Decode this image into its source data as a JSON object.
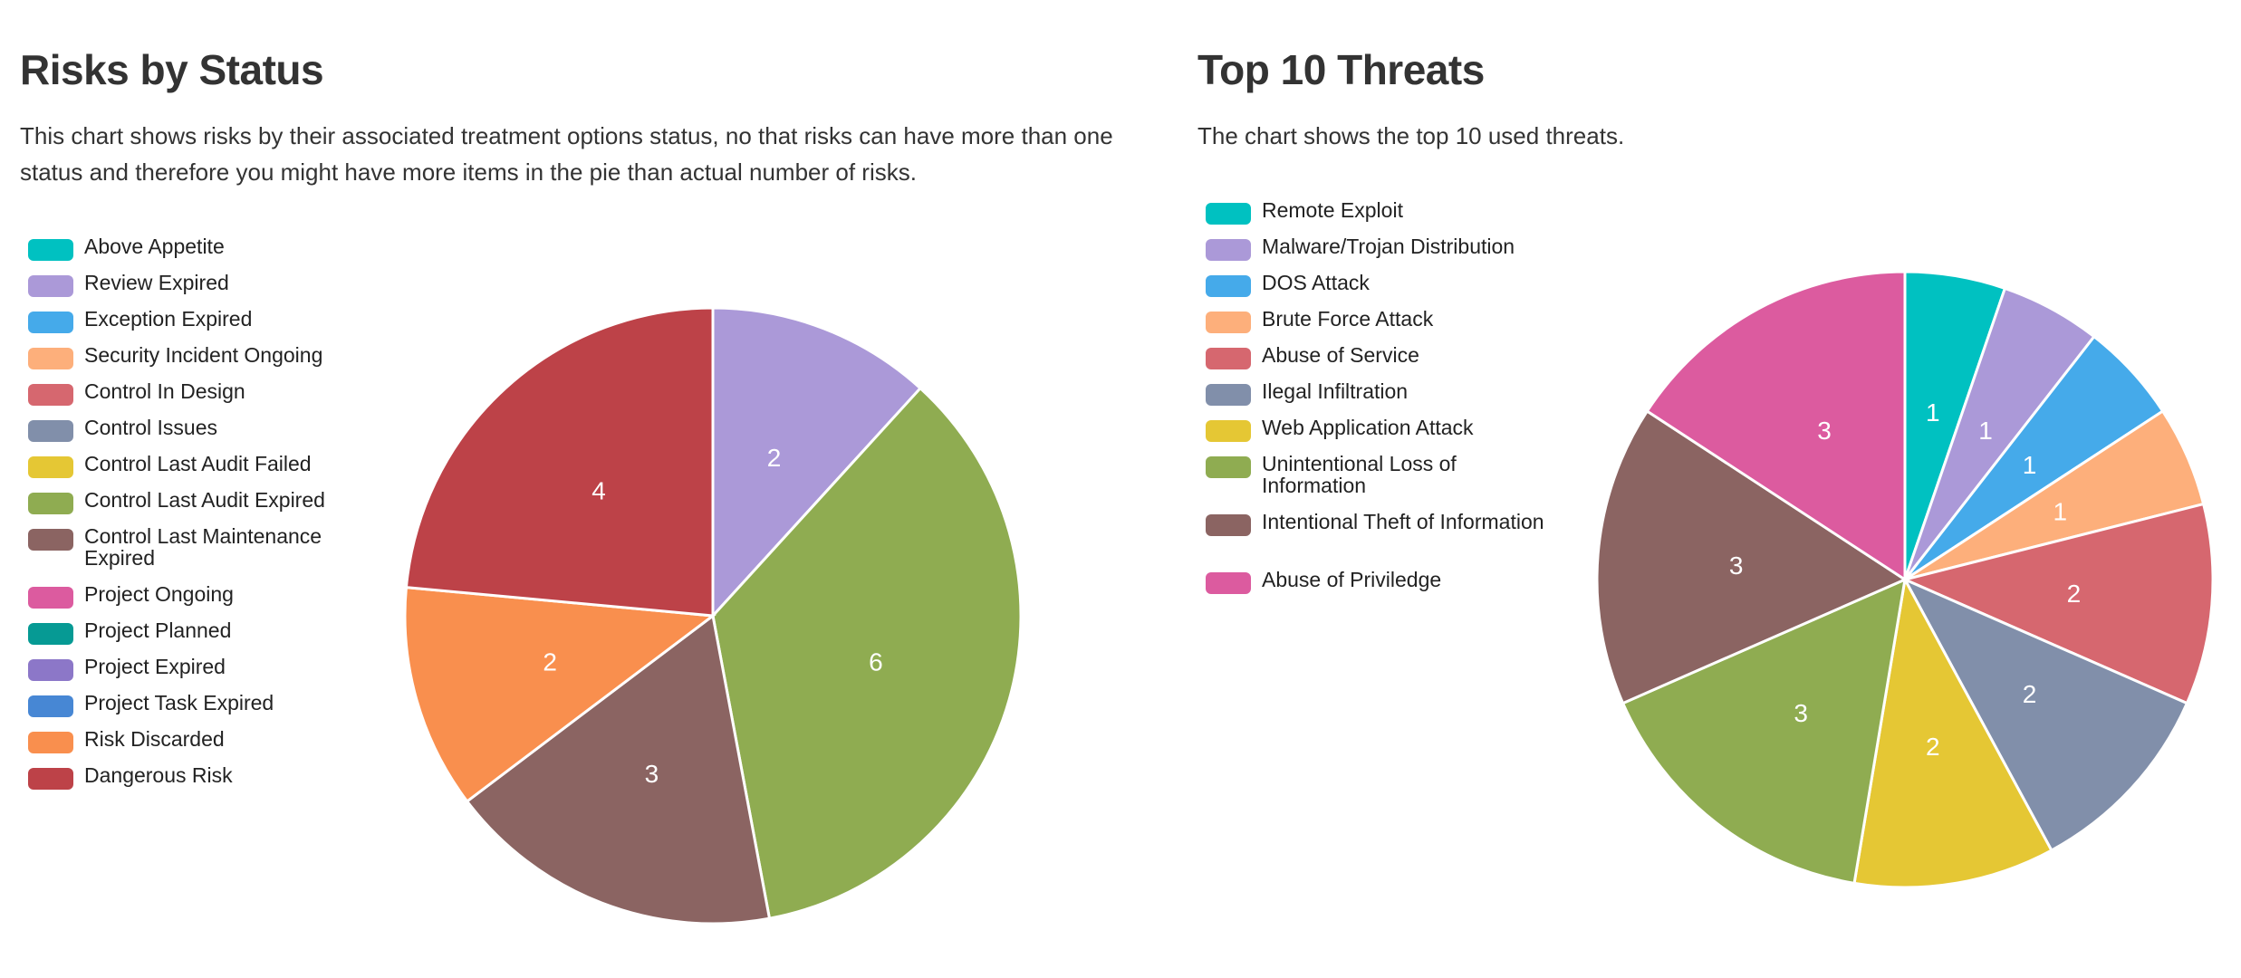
{
  "chart_data": [
    {
      "type": "pie",
      "title": "Risks by Status",
      "description": "This chart shows risks by their associated treatment options status, no that risks can have more than one status and therefore you might have more items in the pie than actual number of risks.",
      "legend": [
        {
          "label": "Above Appetite",
          "color": "#00c1c1"
        },
        {
          "label": "Review Expired",
          "color": "#ab99d8"
        },
        {
          "label": "Exception Expired",
          "color": "#45aaea"
        },
        {
          "label": "Security Incident Ongoing",
          "color": "#fdaf7b"
        },
        {
          "label": "Control In Design",
          "color": "#d6676f"
        },
        {
          "label": "Control Issues",
          "color": "#818faa"
        },
        {
          "label": "Control Last Audit Failed",
          "color": "#e5c734"
        },
        {
          "label": "Control Last Audit Expired",
          "color": "#8fac51"
        },
        {
          "label": "Control Last Maintenance Expired",
          "color": "#8b6462"
        },
        {
          "label": "Project Ongoing",
          "color": "#dc5b9f"
        },
        {
          "label": "Project Planned",
          "color": "#069a94"
        },
        {
          "label": "Project Expired",
          "color": "#8c77c8"
        },
        {
          "label": "Project Task Expired",
          "color": "#4787d4"
        },
        {
          "label": "Risk Discarded",
          "color": "#f98f4e"
        },
        {
          "label": "Dangerous Risk",
          "color": "#bd4248"
        }
      ],
      "slices": [
        {
          "label": "Review Expired",
          "value": 2,
          "color": "#ab99d8"
        },
        {
          "label": "Control Last Audit Expired",
          "value": 6,
          "color": "#8fac51"
        },
        {
          "label": "Control Last Maintenance Expired",
          "value": 3,
          "color": "#8b6462"
        },
        {
          "label": "Risk Discarded",
          "value": 2,
          "color": "#f98f4e"
        },
        {
          "label": "Dangerous Risk",
          "value": 4,
          "color": "#bd4248"
        }
      ]
    },
    {
      "type": "pie",
      "title": "Top 10 Threats",
      "description": "The chart shows the top 10 used threats.",
      "legend": [
        {
          "label": "Remote Exploit",
          "color": "#00c1c1"
        },
        {
          "label": "Malware/Trojan Distribution",
          "color": "#ab99d8"
        },
        {
          "label": "DOS Attack",
          "color": "#45aaea"
        },
        {
          "label": "Brute Force Attack",
          "color": "#fdaf7b"
        },
        {
          "label": "Abuse of Service",
          "color": "#d6676f"
        },
        {
          "label": "Ilegal Infiltration",
          "color": "#818faa"
        },
        {
          "label": "Web Application Attack",
          "color": "#e5c734"
        },
        {
          "label": "Unintentional Loss of Information",
          "color": "#8fac51"
        },
        {
          "label": "Intentional Theft of Information",
          "color": "#8b6462"
        },
        {
          "label": "Abuse of Priviledge",
          "color": "#dc5b9f"
        }
      ],
      "slices": [
        {
          "label": "Remote Exploit",
          "value": 1,
          "color": "#00c1c1"
        },
        {
          "label": "Malware/Trojan Distribution",
          "value": 1,
          "color": "#ab99d8"
        },
        {
          "label": "DOS Attack",
          "value": 1,
          "color": "#45aaea"
        },
        {
          "label": "Brute Force Attack",
          "value": 1,
          "color": "#fdaf7b"
        },
        {
          "label": "Abuse of Service",
          "value": 2,
          "color": "#d6676f"
        },
        {
          "label": "Ilegal Infiltration",
          "value": 2,
          "color": "#818faa"
        },
        {
          "label": "Web Application Attack",
          "value": 2,
          "color": "#e5c734"
        },
        {
          "label": "Unintentional Loss of Information",
          "value": 3,
          "color": "#8fac51"
        },
        {
          "label": "Intentional Theft of Information",
          "value": 3,
          "color": "#8b6462"
        },
        {
          "label": "Abuse of Priviledge",
          "value": 3,
          "color": "#dc5b9f"
        }
      ]
    }
  ]
}
